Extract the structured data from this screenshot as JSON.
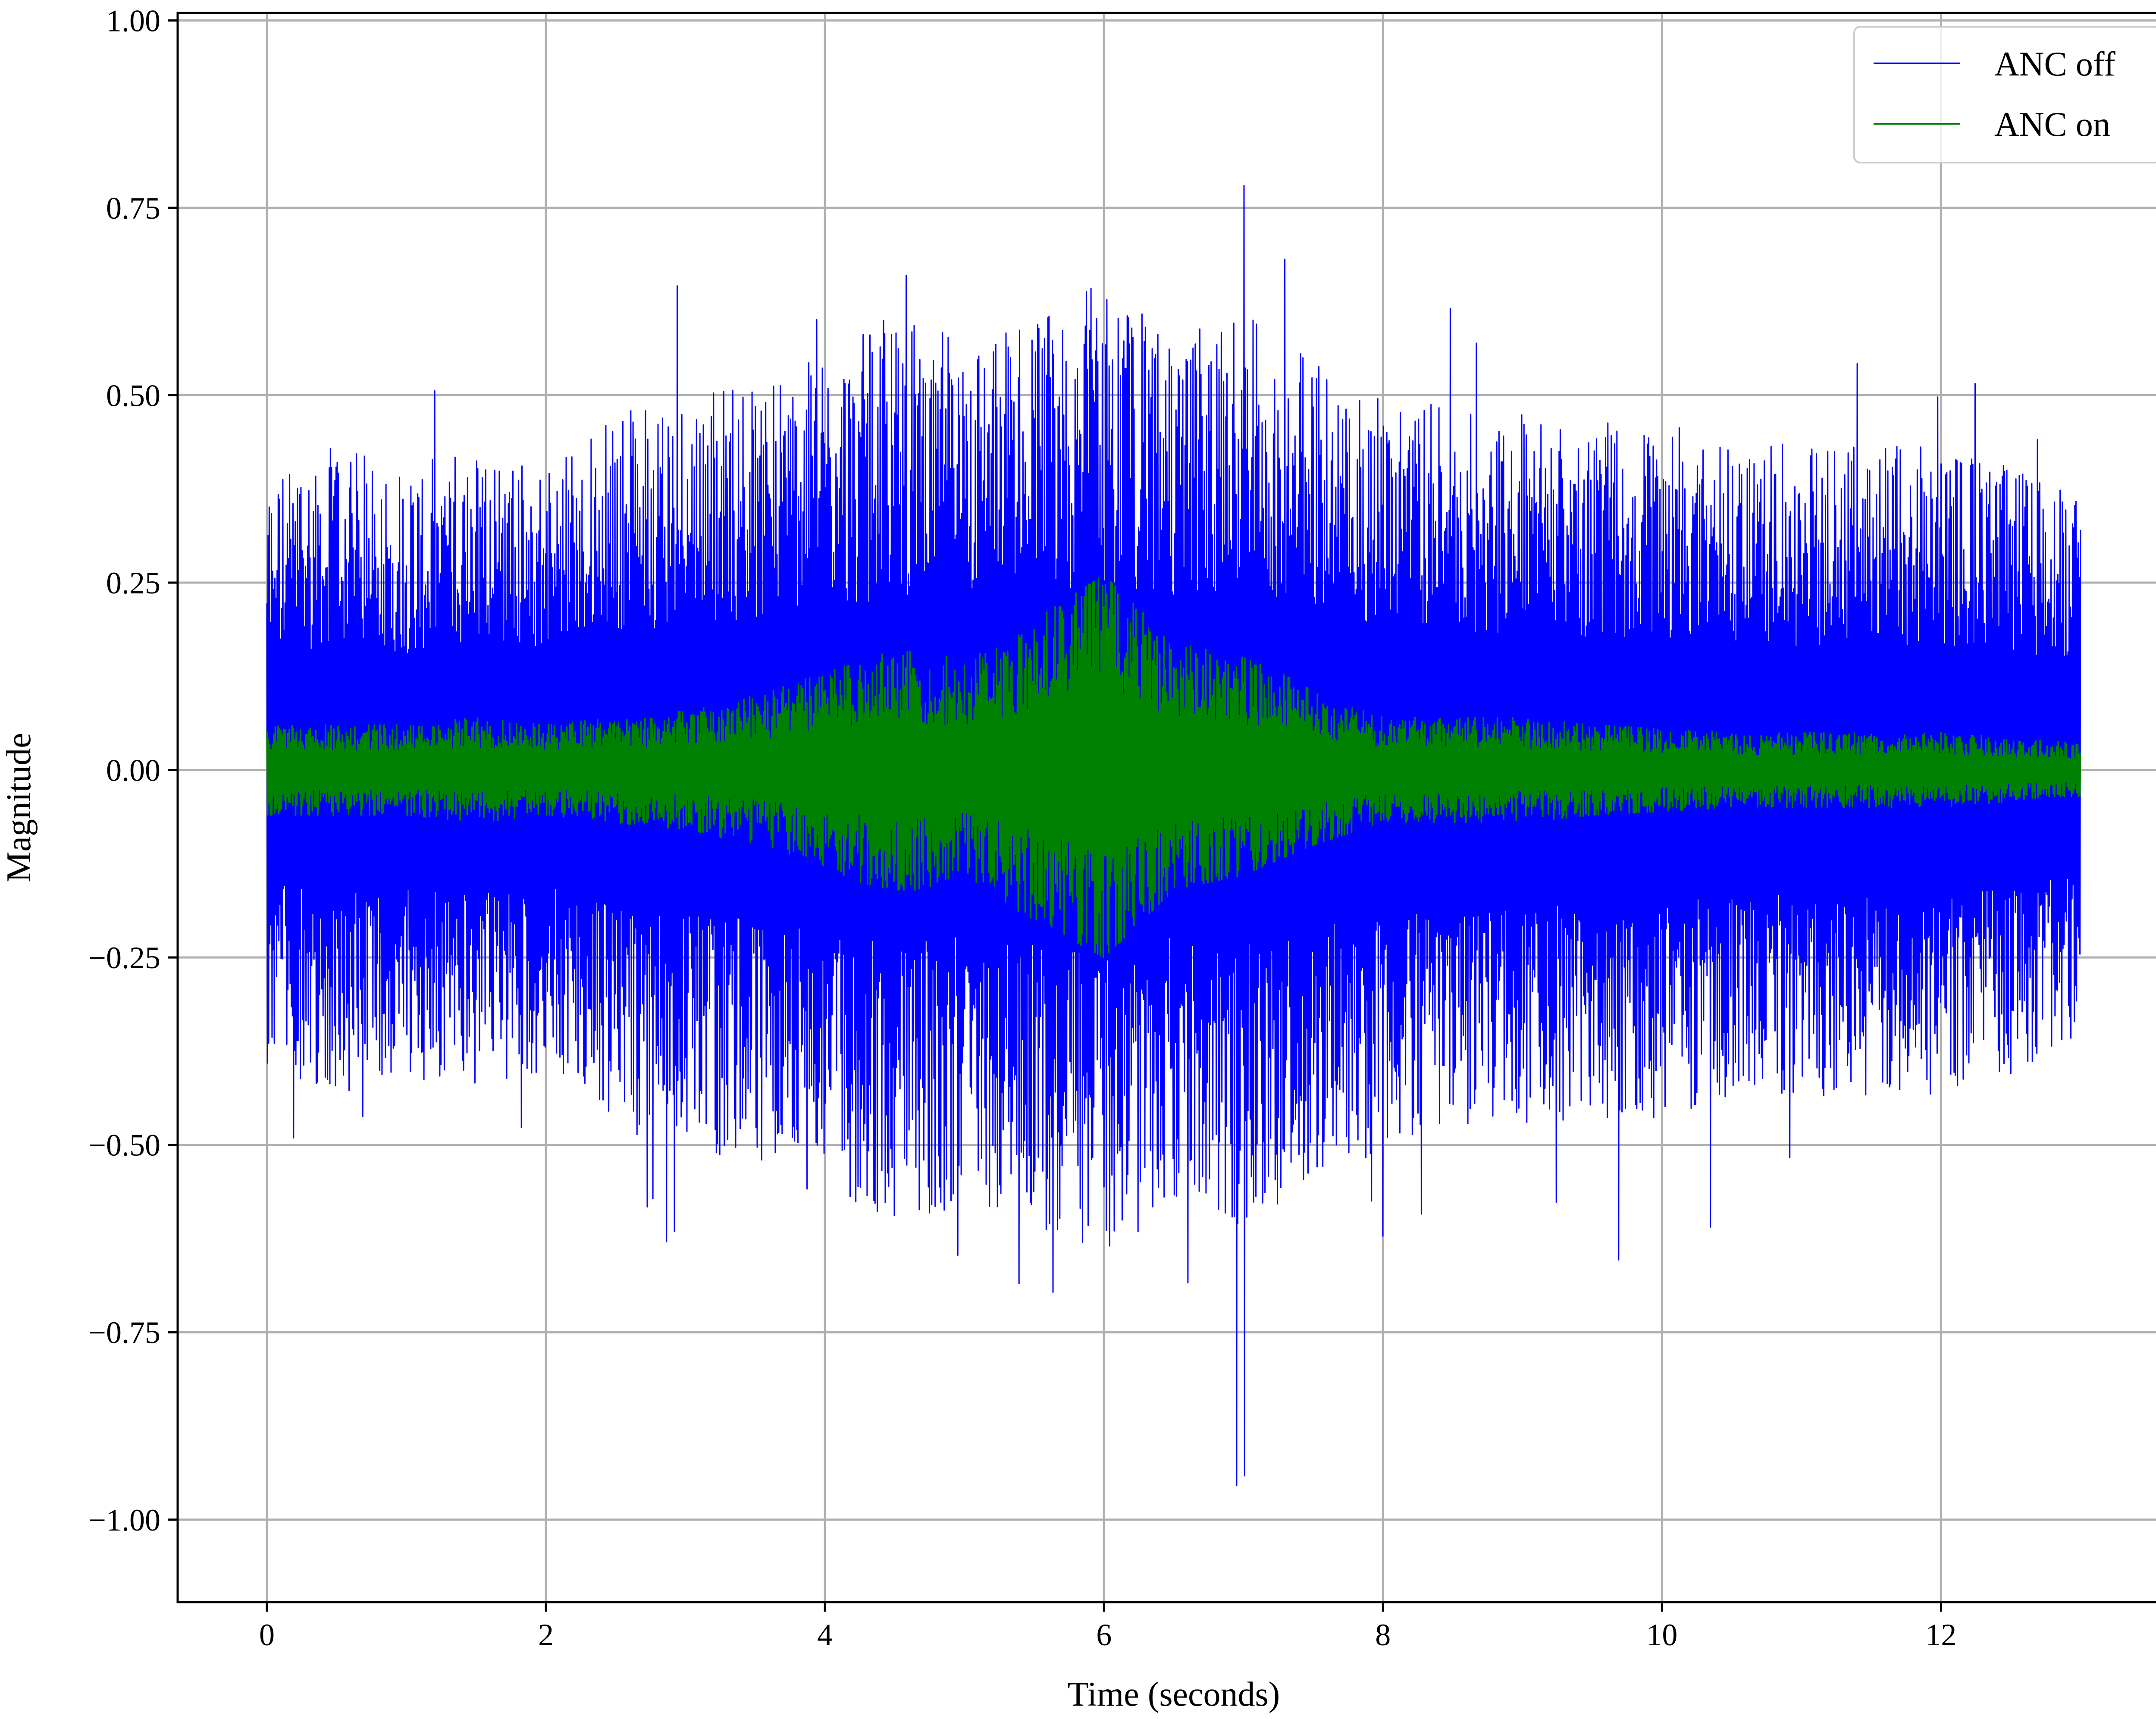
{
  "chart_data": {
    "type": "line",
    "title": "",
    "xlabel": "Time (seconds)",
    "ylabel": "Magnitude",
    "xlim": [
      -0.64,
      13.64
    ],
    "ylim": [
      -1.11,
      1.01
    ],
    "xticks": [
      0,
      2,
      4,
      6,
      8,
      10,
      12
    ],
    "xtick_labels": [
      "0",
      "2",
      "4",
      "6",
      "8",
      "10",
      "12"
    ],
    "yticks": [
      1.0,
      0.75,
      0.5,
      0.25,
      0.0,
      -0.25,
      -0.5,
      -0.75,
      -1.0
    ],
    "ytick_labels": [
      "1.00",
      "0.75",
      "0.50",
      "0.25",
      "0.00",
      "−0.25",
      "−0.50",
      "−0.75",
      "−1.00"
    ],
    "grid": true,
    "legend_position": "top-right",
    "x_range": [
      0,
      13
    ],
    "series": [
      {
        "name": "ANC off",
        "color": "#0000ff",
        "envelope_time": [
          0,
          0.5,
          1,
          1.5,
          2,
          2.5,
          3,
          3.5,
          4,
          4.5,
          5,
          5.5,
          6,
          6.5,
          7,
          7.5,
          8,
          8.5,
          9,
          9.5,
          10,
          10.5,
          11,
          11.5,
          12,
          12.5,
          13
        ],
        "typical_peak": [
          0.27,
          0.3,
          0.28,
          0.3,
          0.28,
          0.33,
          0.35,
          0.36,
          0.38,
          0.42,
          0.4,
          0.42,
          0.45,
          0.4,
          0.42,
          0.38,
          0.35,
          0.33,
          0.33,
          0.32,
          0.32,
          0.3,
          0.3,
          0.3,
          0.3,
          0.28,
          0.25
        ],
        "max_peak": [
          0.48,
          0.56,
          0.48,
          0.55,
          0.49,
          0.55,
          0.68,
          0.66,
          0.7,
          0.77,
          0.72,
          0.74,
          0.79,
          0.7,
          0.91,
          0.68,
          0.66,
          0.62,
          0.6,
          0.62,
          0.6,
          0.6,
          0.62,
          0.58,
          0.58,
          0.53,
          0.45
        ],
        "min_trough": [
          -0.55,
          -0.5,
          -0.52,
          -0.48,
          -0.5,
          -0.6,
          -0.7,
          -0.65,
          -0.62,
          -0.7,
          -0.72,
          -0.82,
          -0.74,
          -0.72,
          -1.01,
          -0.67,
          -0.65,
          -0.62,
          -0.6,
          -0.65,
          -0.69,
          -0.62,
          -0.6,
          -0.55,
          -0.55,
          -0.58,
          -0.43
        ]
      },
      {
        "name": "ANC on",
        "color": "#008000",
        "envelope_time": [
          0,
          0.5,
          1,
          1.5,
          2,
          2.5,
          3,
          3.5,
          4,
          4.5,
          5,
          5.5,
          6,
          6.5,
          7,
          7.5,
          8,
          8.5,
          9,
          9.5,
          10,
          10.5,
          11,
          11.5,
          12,
          12.5,
          13
        ],
        "typical_peak": [
          0.045,
          0.045,
          0.045,
          0.05,
          0.045,
          0.05,
          0.055,
          0.07,
          0.09,
          0.12,
          0.1,
          0.14,
          0.2,
          0.12,
          0.11,
          0.08,
          0.05,
          0.05,
          0.05,
          0.045,
          0.04,
          0.035,
          0.035,
          0.035,
          0.035,
          0.03,
          0.025
        ],
        "max_peak": [
          0.06,
          0.06,
          0.06,
          0.07,
          0.06,
          0.07,
          0.08,
          0.1,
          0.13,
          0.16,
          0.15,
          0.2,
          0.26,
          0.17,
          0.15,
          0.11,
          0.07,
          0.07,
          0.07,
          0.06,
          0.055,
          0.05,
          0.05,
          0.05,
          0.05,
          0.045,
          0.035
        ],
        "min_trough": [
          -0.06,
          -0.06,
          -0.06,
          -0.07,
          -0.06,
          -0.07,
          -0.08,
          -0.1,
          -0.14,
          -0.16,
          -0.16,
          -0.2,
          -0.25,
          -0.16,
          -0.14,
          -0.1,
          -0.07,
          -0.07,
          -0.07,
          -0.06,
          -0.055,
          -0.05,
          -0.05,
          -0.05,
          -0.05,
          -0.045,
          -0.035
        ]
      }
    ]
  }
}
